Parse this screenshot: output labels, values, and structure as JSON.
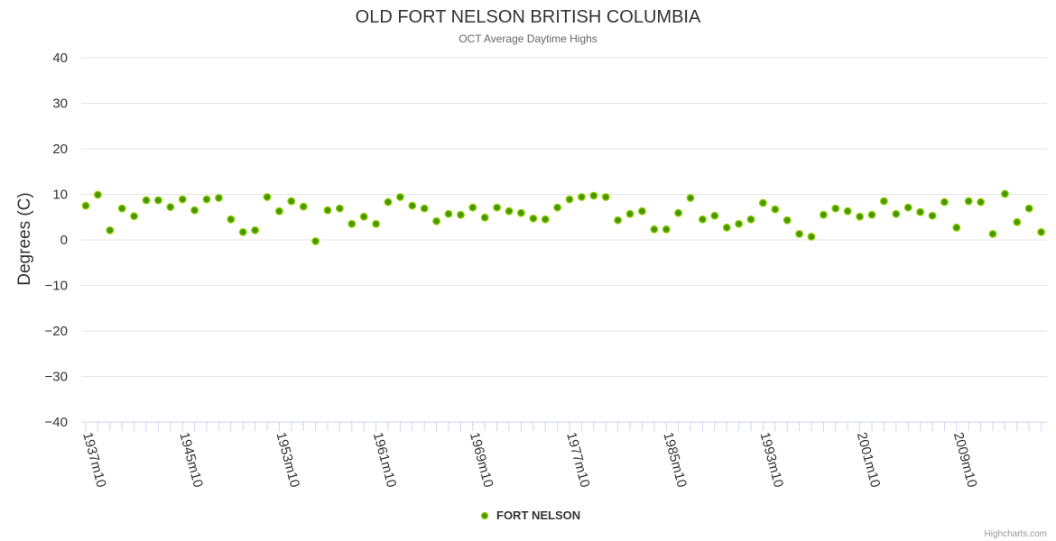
{
  "chart_data": {
    "type": "scatter",
    "title": "OLD FORT NELSON BRITISH COLUMBIA",
    "subtitle": "OCT Average Daytime Highs",
    "xlabel": "",
    "ylabel": "Degrees (C)",
    "ylim": [
      -40,
      40
    ],
    "yticks": [
      40,
      30,
      20,
      10,
      0,
      -10,
      -20,
      -30,
      -40
    ],
    "x_first_year": 1937,
    "x_last_year": 2016,
    "x_label_years": [
      1937,
      1945,
      1953,
      1961,
      1969,
      1977,
      1985,
      1993,
      2001,
      2009
    ],
    "x_label_suffix": "m10",
    "grid": true,
    "legend_position": "bottom-center",
    "marker_color": "#4a9600",
    "marker_edge": "#8fd400",
    "series": [
      {
        "name": "FORT NELSON",
        "points": [
          [
            1937,
            7.5
          ],
          [
            1938,
            9.9
          ],
          [
            1939,
            2.1
          ],
          [
            1940,
            6.9
          ],
          [
            1941,
            5.2
          ],
          [
            1942,
            8.7
          ],
          [
            1943,
            8.7
          ],
          [
            1944,
            7.2
          ],
          [
            1945,
            8.9
          ],
          [
            1946,
            6.5
          ],
          [
            1947,
            8.9
          ],
          [
            1948,
            9.2
          ],
          [
            1949,
            4.5
          ],
          [
            1950,
            1.7
          ],
          [
            1951,
            2.1
          ],
          [
            1952,
            9.4
          ],
          [
            1953,
            6.3
          ],
          [
            1954,
            8.5
          ],
          [
            1955,
            7.3
          ],
          [
            1956,
            -0.3
          ],
          [
            1957,
            6.5
          ],
          [
            1958,
            6.9
          ],
          [
            1959,
            3.5
          ],
          [
            1960,
            5.1
          ],
          [
            1961,
            3.5
          ],
          [
            1962,
            8.3
          ],
          [
            1963,
            9.4
          ],
          [
            1964,
            7.5
          ],
          [
            1965,
            6.9
          ],
          [
            1966,
            4.1
          ],
          [
            1967,
            5.7
          ],
          [
            1968,
            5.5
          ],
          [
            1969,
            7.1
          ],
          [
            1970,
            4.9
          ],
          [
            1971,
            7.1
          ],
          [
            1972,
            6.3
          ],
          [
            1973,
            5.9
          ],
          [
            1974,
            4.7
          ],
          [
            1975,
            4.5
          ],
          [
            1976,
            7.1
          ],
          [
            1977,
            8.9
          ],
          [
            1978,
            9.4
          ],
          [
            1979,
            9.7
          ],
          [
            1980,
            9.4
          ],
          [
            1981,
            4.3
          ],
          [
            1982,
            5.7
          ],
          [
            1983,
            6.3
          ],
          [
            1984,
            2.3
          ],
          [
            1985,
            2.3
          ],
          [
            1986,
            5.9
          ],
          [
            1987,
            9.2
          ],
          [
            1988,
            4.5
          ],
          [
            1989,
            5.3
          ],
          [
            1990,
            2.7
          ],
          [
            1991,
            3.5
          ],
          [
            1992,
            4.5
          ],
          [
            1993,
            8.1
          ],
          [
            1994,
            6.7
          ],
          [
            1995,
            4.3
          ],
          [
            1996,
            1.3
          ],
          [
            1997,
            0.7
          ],
          [
            1998,
            5.5
          ],
          [
            1999,
            6.9
          ],
          [
            2000,
            6.3
          ],
          [
            2001,
            5.1
          ],
          [
            2002,
            5.5
          ],
          [
            2003,
            8.5
          ],
          [
            2004,
            5.7
          ],
          [
            2005,
            7.1
          ],
          [
            2006,
            6.1
          ],
          [
            2007,
            5.3
          ],
          [
            2008,
            8.3
          ],
          [
            2009,
            2.7
          ],
          [
            2010,
            8.5
          ],
          [
            2011,
            8.3
          ],
          [
            2012,
            1.3
          ],
          [
            2013,
            10.1
          ],
          [
            2014,
            3.9
          ],
          [
            2015,
            6.9
          ],
          [
            2016,
            1.7
          ]
        ]
      }
    ]
  },
  "credits": "Highcharts.com"
}
